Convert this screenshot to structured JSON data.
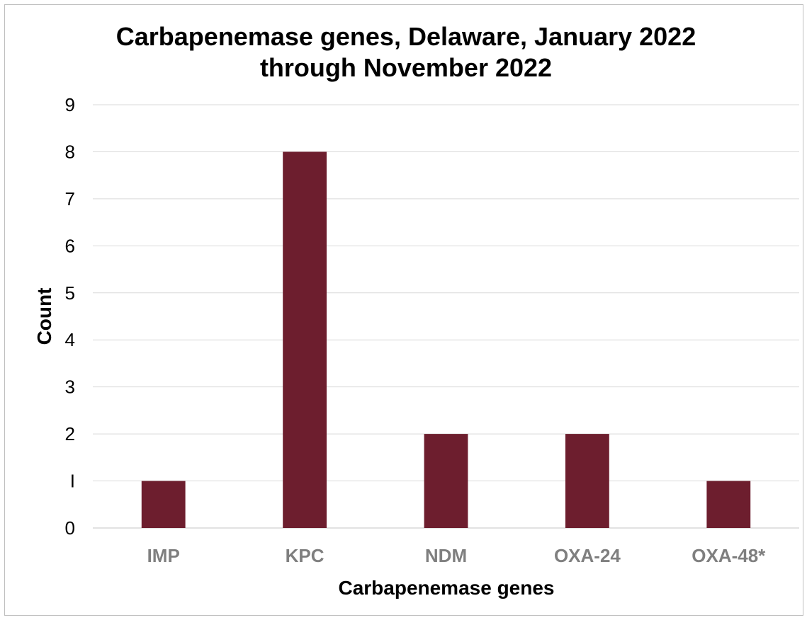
{
  "chart_data": {
    "type": "bar",
    "title": "Carbapenemase genes, Delaware, January 2022 through November 2022",
    "title_lines": [
      "Carbapenemase genes, Delaware, January 2022",
      "through November 2022"
    ],
    "xlabel": "Carbapenemase genes",
    "ylabel": "Count",
    "categories": [
      "IMP",
      "KPC",
      "NDM",
      "OXA-24",
      "OXA-48*"
    ],
    "values": [
      1,
      8,
      2,
      2,
      1
    ],
    "ylim": [
      0,
      9
    ],
    "yticks": [
      0,
      1,
      2,
      3,
      4,
      5,
      6,
      7,
      8,
      9
    ],
    "ytick_labels": [
      "0",
      "I",
      "2",
      "3",
      "4",
      "5",
      "6",
      "7",
      "8",
      "9"
    ],
    "grid": true,
    "legend": "none",
    "bar_color": "#6d1e2e",
    "grid_color": "#d9d9d9",
    "tick_color": "#7f7f7f"
  }
}
